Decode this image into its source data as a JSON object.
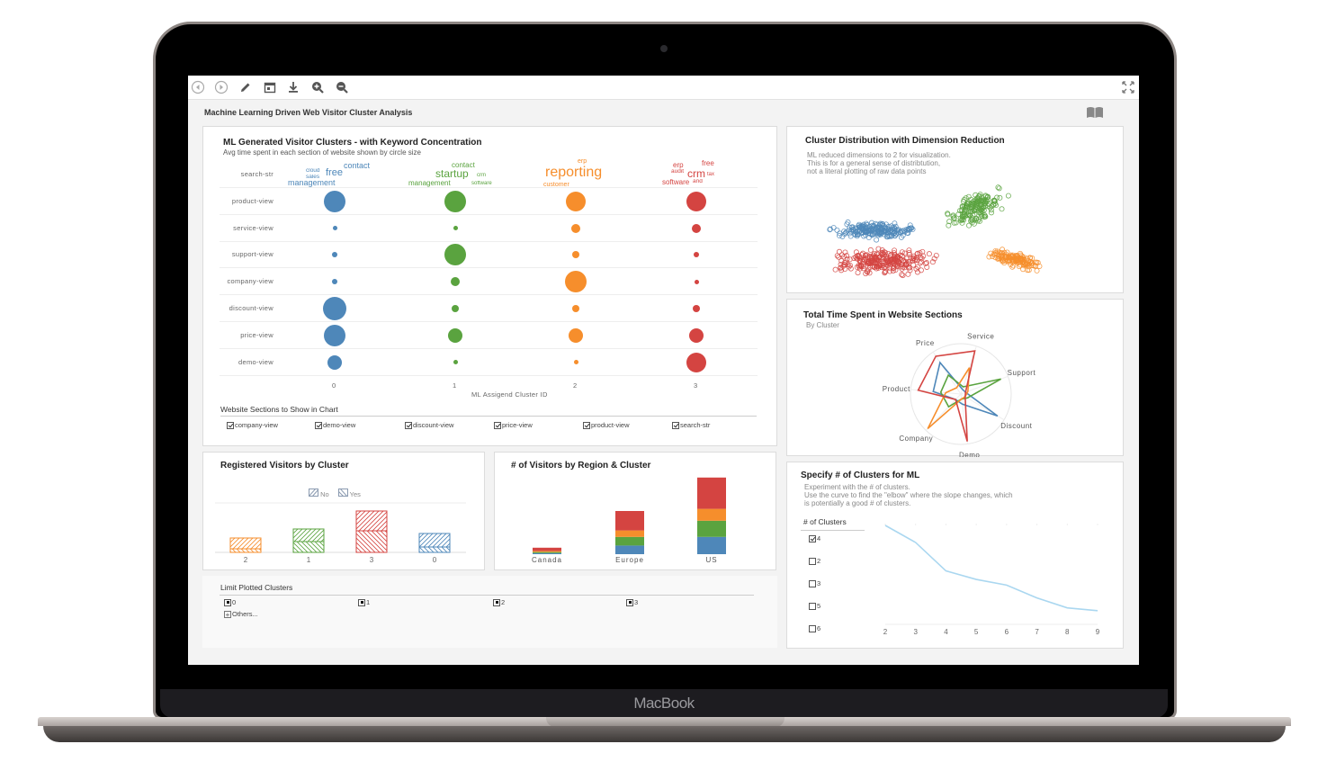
{
  "device": {
    "brand": "MacBook"
  },
  "toolbar": {
    "icons": [
      "back-icon",
      "forward-icon",
      "edit-icon",
      "calendar-icon",
      "download-icon",
      "zoom-in-icon",
      "zoom-out-icon"
    ],
    "fullscreen_icon": "fullscreen-icon"
  },
  "app": {
    "title": "Machine Learning Driven Web Visitor Cluster Analysis",
    "help_icon": "book-icon"
  },
  "bubble_panel": {
    "title": "ML Generated Visitor Clusters - with Keyword Concentration",
    "subtitle": "Avg time spent in each section of website shown by circle size",
    "rows": [
      "search-str",
      "product-view",
      "service-view",
      "support-view",
      "company-view",
      "discount-view",
      "price-view",
      "demo-view"
    ],
    "x_ticks": [
      "0",
      "1",
      "2",
      "3"
    ],
    "x_label": "ML Assigend Cluster ID",
    "filter_title": "Website Sections to Show in Chart",
    "filters": [
      "company-view",
      "demo-view",
      "discount-view",
      "price-view",
      "product-view",
      "search-str"
    ],
    "keywords": {
      "c0": [
        "contact",
        "cloud",
        "sales",
        "free",
        "management"
      ],
      "c1": [
        "contact",
        "startup",
        "crm",
        "management",
        "software"
      ],
      "c2": [
        "erp",
        "reporting",
        "customer"
      ],
      "c3": [
        "erp",
        "free",
        "audit",
        "crm",
        "tax",
        "software",
        "and"
      ]
    }
  },
  "registered_panel": {
    "title": "Registered Visitors by Cluster",
    "legend": [
      "No",
      "Yes"
    ],
    "x_ticks": [
      "2",
      "1",
      "3",
      "0"
    ]
  },
  "region_panel": {
    "title": "# of Visitors by Region & Cluster",
    "x_ticks": [
      "Canada",
      "Europe",
      "US"
    ]
  },
  "limit_panel": {
    "title": "Limit Plotted Clusters",
    "options": [
      "0",
      "1",
      "2",
      "3"
    ],
    "others": "Others..."
  },
  "scatter_panel": {
    "title": "Cluster Distribution with Dimension Reduction",
    "note": "ML reduced dimensions to 2 for visualization.\nThis is for a general sense of distribtution,\nnot a literal plotting of raw data points"
  },
  "radar_panel": {
    "title": "Total Time Spent in Website Sections",
    "subtitle": "By Cluster",
    "axes": [
      "Service",
      "Support",
      "Discount",
      "Demo",
      "Company",
      "Product",
      "Price"
    ]
  },
  "elbow_panel": {
    "title": "Specify # of Clusters for ML",
    "note": "Experiment with the # of clusters.\nUse the curve to find the \"elbow\" where the slope changes, which\nis potentially a good # of clusters.",
    "list_title": "# of Clusters",
    "options": [
      {
        "v": "4",
        "checked": true
      },
      {
        "v": "2",
        "checked": false
      },
      {
        "v": "3",
        "checked": false
      },
      {
        "v": "5",
        "checked": false
      },
      {
        "v": "6",
        "checked": false
      }
    ],
    "x_ticks": [
      "2",
      "3",
      "4",
      "5",
      "6",
      "7",
      "8",
      "9"
    ]
  },
  "colors": {
    "c0": "#4e87b9",
    "c1": "#5aa33f",
    "c2": "#f68e2c",
    "c3": "#d44441"
  },
  "chart_data": [
    {
      "type": "scatter",
      "title": "ML Generated Visitor Clusters - with Keyword Concentration",
      "subtitle": "Avg time spent in each section of website shown by circle size",
      "xlabel": "ML Assigend Cluster ID",
      "categories_x": [
        "0",
        "1",
        "2",
        "3"
      ],
      "categories_y": [
        "product-view",
        "service-view",
        "support-view",
        "company-view",
        "discount-view",
        "price-view",
        "demo-view"
      ],
      "bubble_radius": {
        "0": [
          12,
          2.5,
          3,
          3,
          13,
          12,
          8
        ],
        "1": [
          12,
          2.5,
          12,
          5,
          4,
          8,
          2.5
        ],
        "2": [
          11,
          5,
          4,
          12,
          4,
          8,
          2.5
        ],
        "3": [
          11,
          5,
          3,
          2.5,
          4,
          8,
          11
        ]
      }
    },
    {
      "type": "bar",
      "title": "Registered Visitors by Cluster",
      "categories": [
        "2",
        "1",
        "3",
        "0"
      ],
      "series": [
        {
          "name": "No",
          "values": [
            12,
            14,
            22,
            15
          ]
        },
        {
          "name": "Yes",
          "values": [
            4,
            12,
            24,
            6
          ]
        }
      ]
    },
    {
      "type": "bar",
      "title": "# of Visitors by Region & Cluster",
      "categories": [
        "Canada",
        "Europe",
        "US"
      ],
      "series": [
        {
          "name": "0",
          "values": [
            1,
            8,
            16
          ]
        },
        {
          "name": "1",
          "values": [
            1,
            8,
            15
          ]
        },
        {
          "name": "2",
          "values": [
            1,
            6,
            11
          ]
        },
        {
          "name": "3",
          "values": [
            3,
            18,
            29
          ]
        }
      ]
    },
    {
      "type": "scatter",
      "title": "Cluster Distribution with Dimension Reduction",
      "series": [
        {
          "name": "0",
          "center": [
            0.3,
            0.45
          ]
        },
        {
          "name": "1",
          "center": [
            0.6,
            0.25
          ]
        },
        {
          "name": "2",
          "center": [
            0.8,
            0.7
          ]
        },
        {
          "name": "3",
          "center": [
            0.3,
            0.62
          ]
        }
      ]
    },
    {
      "type": "line",
      "title": "Total Time Spent in Website Sections",
      "subtitle": "By Cluster",
      "categories": [
        "Service",
        "Support",
        "Discount",
        "Demo",
        "Company",
        "Product",
        "Price"
      ],
      "series": [
        {
          "name": "0",
          "values": [
            0.1,
            0.1,
            0.85,
            0.2,
            0.15,
            0.55,
            0.75
          ]
        },
        {
          "name": "1",
          "values": [
            0.15,
            0.85,
            0.15,
            0.1,
            0.35,
            0.4,
            0.45
          ]
        },
        {
          "name": "2",
          "values": [
            0.55,
            0.15,
            0.1,
            0.1,
            0.95,
            0.3,
            0.15
          ]
        },
        {
          "name": "3",
          "values": [
            0.9,
            0.1,
            0.1,
            0.95,
            0.15,
            0.85,
            0.9
          ]
        }
      ]
    },
    {
      "type": "line",
      "title": "Specify # of Clusters for ML",
      "x": [
        2,
        3,
        4,
        5,
        6,
        7,
        8,
        9
      ],
      "values": [
        100,
        88,
        68,
        62,
        58,
        49,
        42,
        40
      ],
      "xlabel": "",
      "ylabel": ""
    }
  ]
}
